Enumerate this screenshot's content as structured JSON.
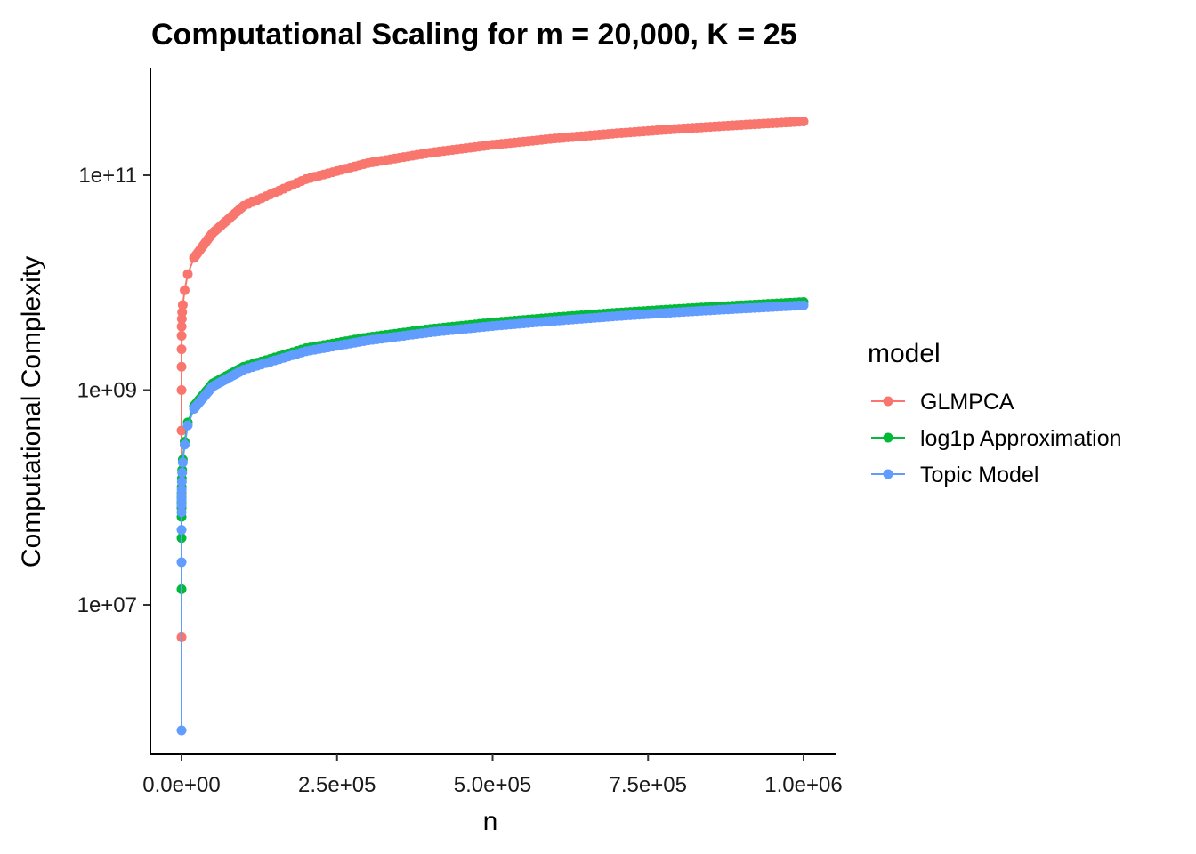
{
  "chart_data": {
    "type": "line",
    "title": "Computational Scaling for m = 20,000, K = 25",
    "xlabel": "n",
    "ylabel": "Computational Complexity",
    "x_scale": "linear",
    "y_scale": "log10",
    "xlim": [
      0,
      1000000
    ],
    "ylim": [
      500000,
      400000000000
    ],
    "x_ticks": [
      0,
      250000,
      500000,
      750000,
      1000000
    ],
    "x_tick_labels": [
      "0.0e+00",
      "2.5e+05",
      "5.0e+05",
      "7.5e+05",
      "1.0e+06"
    ],
    "y_ticks": [
      10000000,
      1000000000,
      100000000000
    ],
    "y_tick_labels": [
      "1e+07",
      "1e+09",
      "1e+11"
    ],
    "grid": false,
    "legend": {
      "title": "model",
      "position": "right"
    },
    "series": [
      {
        "name": "GLMPCA",
        "color": "#F8766D",
        "x": [
          1,
          2,
          5,
          10,
          20,
          50,
          100,
          200,
          500,
          1000,
          2000,
          5000,
          10000,
          20000,
          50000,
          100000,
          200000,
          300000,
          400000,
          500000,
          600000,
          700000,
          800000,
          900000,
          1000000
        ],
        "y": [
          5000000,
          80000000,
          420000000,
          1000000000,
          1650000000,
          2400000000,
          3200000000,
          3900000000,
          4600000000,
          5300000000,
          6200000000,
          8500000000,
          12000000000,
          17000000000,
          29000000000,
          52000000000,
          92000000000,
          130000000000,
          162000000000,
          192000000000,
          220000000000,
          246000000000,
          271000000000,
          294000000000,
          317000000000
        ]
      },
      {
        "name": "log1p Approximation",
        "color": "#00BA38",
        "x": [
          1,
          2,
          5,
          10,
          20,
          50,
          100,
          200,
          500,
          1000,
          2000,
          5000,
          10000,
          20000,
          50000,
          100000,
          200000,
          300000,
          400000,
          500000,
          600000,
          700000,
          800000,
          900000,
          1000000
        ],
        "y": [
          14000000,
          42000000,
          66000000,
          80000000,
          90000000,
          100000000,
          110000000,
          125000000,
          150000000,
          180000000,
          225000000,
          330000000,
          500000000,
          710000000,
          1150000000,
          1650000000,
          2450000000,
          3100000000,
          3700000000,
          4250000000,
          4750000000,
          5250000000,
          5700000000,
          6150000000,
          6600000000
        ]
      },
      {
        "name": "Topic Model",
        "color": "#619CFF",
        "x": [
          1,
          2,
          5,
          10,
          20,
          50,
          100,
          200,
          500,
          1000,
          2000,
          5000,
          10000,
          20000,
          50000,
          100000,
          200000,
          300000,
          400000,
          500000,
          600000,
          700000,
          800000,
          900000,
          1000000
        ],
        "y": [
          680000,
          25000000,
          50000000,
          73000000,
          85000000,
          95000000,
          105000000,
          118000000,
          140000000,
          170000000,
          212000000,
          310000000,
          470000000,
          670000000,
          1080000000,
          1550000000,
          2300000000,
          2900000000,
          3450000000,
          3950000000,
          4420000000,
          4880000000,
          5320000000,
          5740000000,
          6150000000
        ]
      }
    ]
  }
}
